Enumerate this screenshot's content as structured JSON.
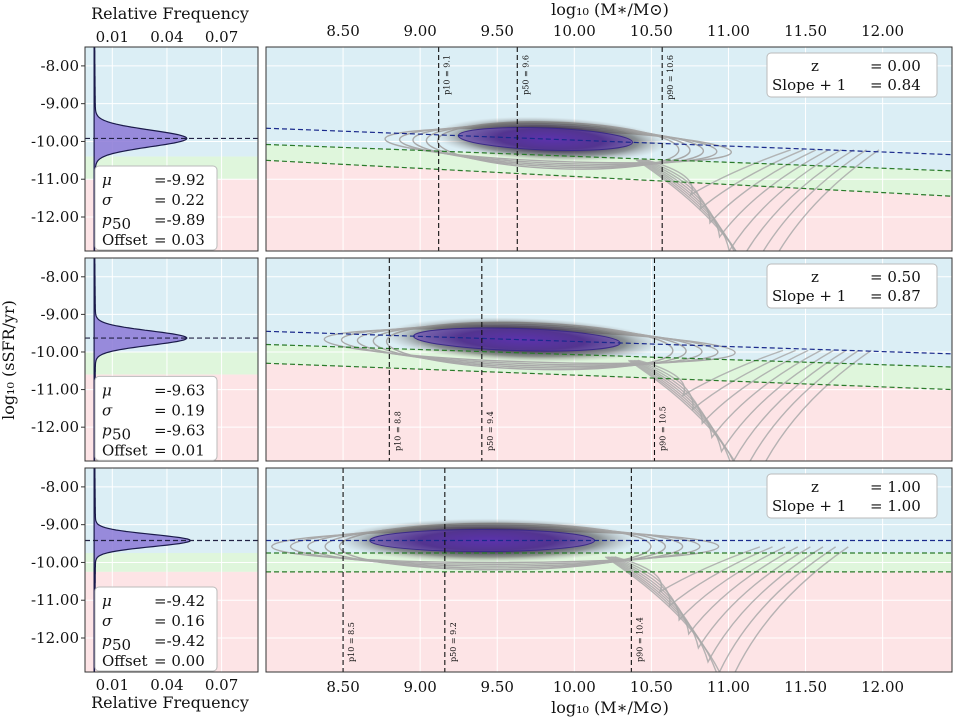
{
  "chart_data": {
    "type": "contour",
    "main_xlabel": "log₁₀ (M∗/M⊙)",
    "ylabel": "log₁₀ (sSFR/yr)",
    "hist_xlabel": "Relative Frequency",
    "main_xticks": [
      "8.50",
      "9.00",
      "9.50",
      "10.00",
      "10.50",
      "11.00",
      "11.50",
      "12.00"
    ],
    "main_xlim": [
      8.0,
      12.45
    ],
    "yticks": [
      "-8.00",
      "-9.00",
      "-10.00",
      "-11.00",
      "-12.00"
    ],
    "ylim": [
      -7.5,
      -12.9
    ],
    "hist_xticks": [
      "0.01",
      "0.04",
      "0.07"
    ],
    "hist_xlim": [
      -0.005,
      0.09
    ],
    "grid": true,
    "legend_position": "top-right",
    "box_labels": {
      "z": "z",
      "slope": "Slope + 1",
      "mu": "μ",
      "sigma": "σ",
      "p50": "p",
      "p50_sub": "50",
      "offset": "Offset"
    },
    "panels": [
      {
        "z": "= 0.00",
        "slope": "= 0.84",
        "mu": "=-9.92",
        "sigma": "= 0.22",
        "p50": "=-9.89",
        "offset": "= 0.03",
        "mu_val": -9.92,
        "sigma_val": 0.22,
        "hist_peak": 0.05,
        "percentiles": [
          {
            "label": "p10 = 9.1",
            "x": 9.12,
            "pos": "top"
          },
          {
            "label": "p50 = 9.6",
            "x": 9.63,
            "pos": "top"
          },
          {
            "label": "p90 = 10.6",
            "x": 10.57,
            "pos": "top"
          }
        ],
        "sf_line": {
          "x0": 8.0,
          "y0": -9.65,
          "x1": 12.45,
          "y1": -10.35
        },
        "green_upper": {
          "x0": 8.0,
          "y0": -10.08,
          "x1": 12.45,
          "y1": -10.78
        },
        "green_lower": {
          "x0": 8.0,
          "y0": -10.5,
          "x1": 12.45,
          "y1": -11.45
        },
        "hist_bands": {
          "blue": [
            -7.5,
            -10.4
          ],
          "green": [
            -10.4,
            -11.0
          ],
          "red": [
            -11.0,
            -12.9
          ]
        }
      },
      {
        "z": "= 0.50",
        "slope": "= 0.87",
        "mu": "=-9.63",
        "sigma": "= 0.19",
        "p50": "=-9.63",
        "offset": "= 0.01",
        "mu_val": -9.63,
        "sigma_val": 0.19,
        "hist_peak": 0.05,
        "percentiles": [
          {
            "label": "p10 = 8.8",
            "x": 8.8,
            "pos": "bottom"
          },
          {
            "label": "p50 = 9.4",
            "x": 9.4,
            "pos": "bottom"
          },
          {
            "label": "p90 = 10.5",
            "x": 10.52,
            "pos": "bottom"
          }
        ],
        "sf_line": {
          "x0": 8.0,
          "y0": -9.45,
          "x1": 12.45,
          "y1": -10.05
        },
        "green_upper": {
          "x0": 8.0,
          "y0": -9.8,
          "x1": 12.45,
          "y1": -10.4
        },
        "green_lower": {
          "x0": 8.0,
          "y0": -10.3,
          "x1": 12.45,
          "y1": -11.0
        },
        "hist_bands": {
          "blue": [
            -7.5,
            -10.0
          ],
          "green": [
            -10.0,
            -10.6
          ],
          "red": [
            -10.6,
            -12.9
          ]
        }
      },
      {
        "z": "= 1.00",
        "slope": "= 1.00",
        "mu": "=-9.42",
        "sigma": "= 0.16",
        "p50": "=-9.42",
        "offset": "= 0.00",
        "mu_val": -9.42,
        "sigma_val": 0.16,
        "hist_peak": 0.052,
        "percentiles": [
          {
            "label": "p10 = 8.5",
            "x": 8.5,
            "pos": "bottom"
          },
          {
            "label": "p50 = 9.2",
            "x": 9.16,
            "pos": "bottom"
          },
          {
            "label": "p90 = 10.4",
            "x": 10.37,
            "pos": "bottom"
          }
        ],
        "sf_line": {
          "x0": 8.0,
          "y0": -9.42,
          "x1": 12.45,
          "y1": -9.42
        },
        "green_upper": {
          "x0": 8.0,
          "y0": -9.75,
          "x1": 12.45,
          "y1": -9.75
        },
        "green_lower": {
          "x0": 8.0,
          "y0": -10.25,
          "x1": 12.45,
          "y1": -10.25
        },
        "hist_bands": {
          "blue": [
            -7.5,
            -9.75
          ],
          "green": [
            -9.75,
            -10.25
          ],
          "red": [
            -10.25,
            -12.9
          ]
        }
      }
    ]
  },
  "colors": {
    "sf_band": "#dbeef5",
    "gv_band": "#dff6dc",
    "q_band": "#fde4e6",
    "hist_fill": "#8b78d6",
    "contour": "#a9a9a9",
    "core": "#3c1a66",
    "sf_line": "#1a2a8c",
    "gv_line": "#2a7a2a"
  }
}
